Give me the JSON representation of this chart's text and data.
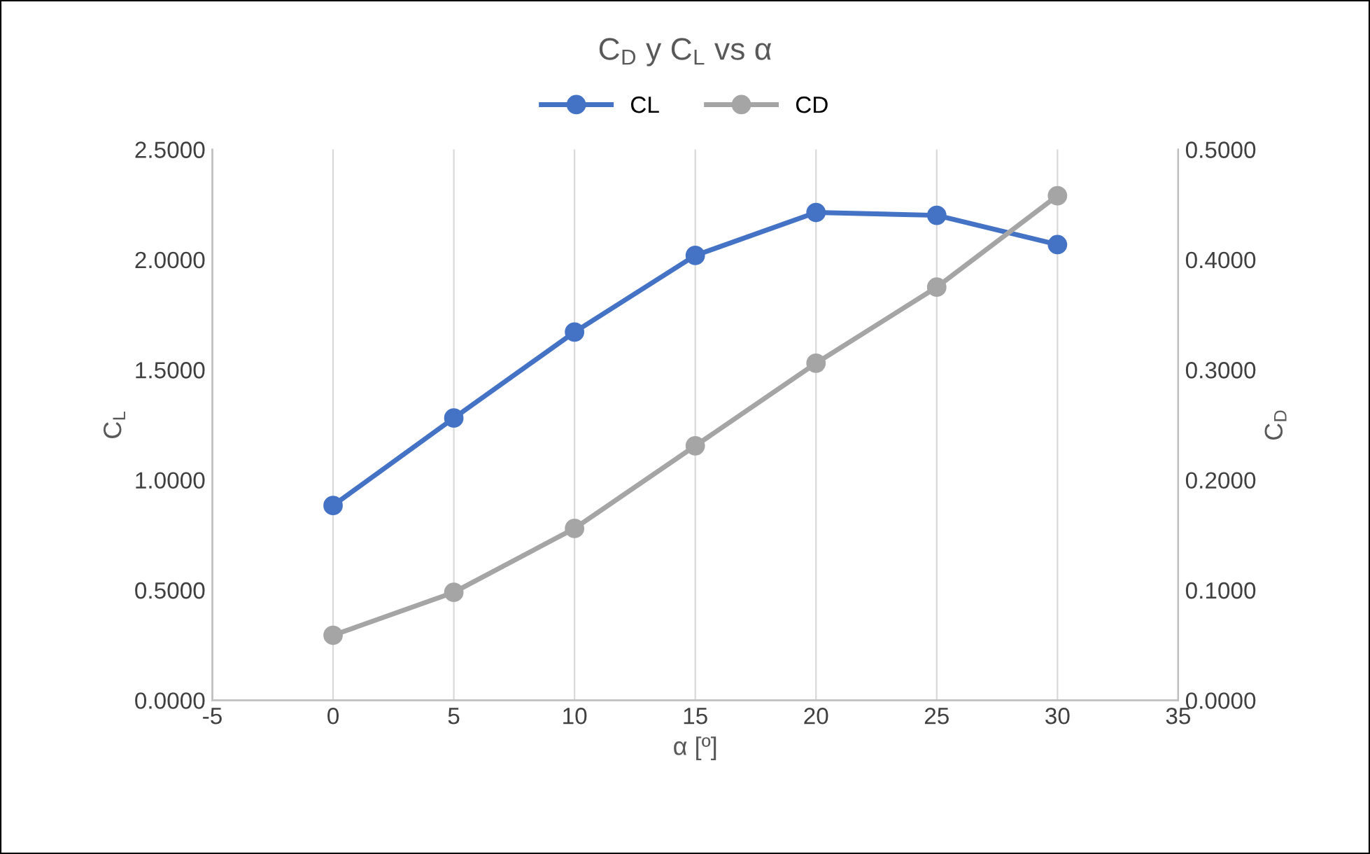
{
  "chart_data": {
    "type": "line",
    "title": "C$_{D}$ y C$_{L}$ vs α",
    "xlabel": "α [º]",
    "ylabel": "C$_{L}$",
    "y2label": "C$_{D}$",
    "x": [
      0,
      5,
      10,
      15,
      20,
      25,
      30
    ],
    "series": [
      {
        "name": "CL",
        "color": "#4472c4",
        "values": [
          0.884,
          1.281,
          1.671,
          2.019,
          2.214,
          2.201,
          2.068
        ]
      },
      {
        "name": "CD",
        "color": "#a5a5a5",
        "axis": "y2",
        "values": [
          0.059,
          0.098,
          0.156,
          0.231,
          0.306,
          0.375,
          0.458
        ]
      }
    ],
    "xlim": [
      -5,
      35
    ],
    "xticks": [
      -5,
      0,
      5,
      10,
      15,
      20,
      25,
      30,
      35
    ],
    "ylim": [
      0,
      2.5
    ],
    "yticks": [
      {
        "value": 0,
        "label": "0.0000"
      },
      {
        "value": 0.5,
        "label": "0.5000"
      },
      {
        "value": 1,
        "label": "1.0000"
      },
      {
        "value": 1.5,
        "label": "1.5000"
      },
      {
        "value": 2,
        "label": "2.0000"
      },
      {
        "value": 2.5,
        "label": "2.5000"
      }
    ],
    "y2lim": [
      0,
      0.5
    ],
    "y2ticks": [
      {
        "value": 0,
        "label": "0.0000"
      },
      {
        "value": 0.1,
        "label": "0.1000"
      },
      {
        "value": 0.2,
        "label": "0.2000"
      },
      {
        "value": 0.3,
        "label": "0.3000"
      },
      {
        "value": 0.4,
        "label": "0.4000"
      },
      {
        "value": 0.5,
        "label": "0.5000"
      }
    ],
    "grid": "x",
    "legend": "top",
    "marker": "circle",
    "line_style": "solid"
  }
}
